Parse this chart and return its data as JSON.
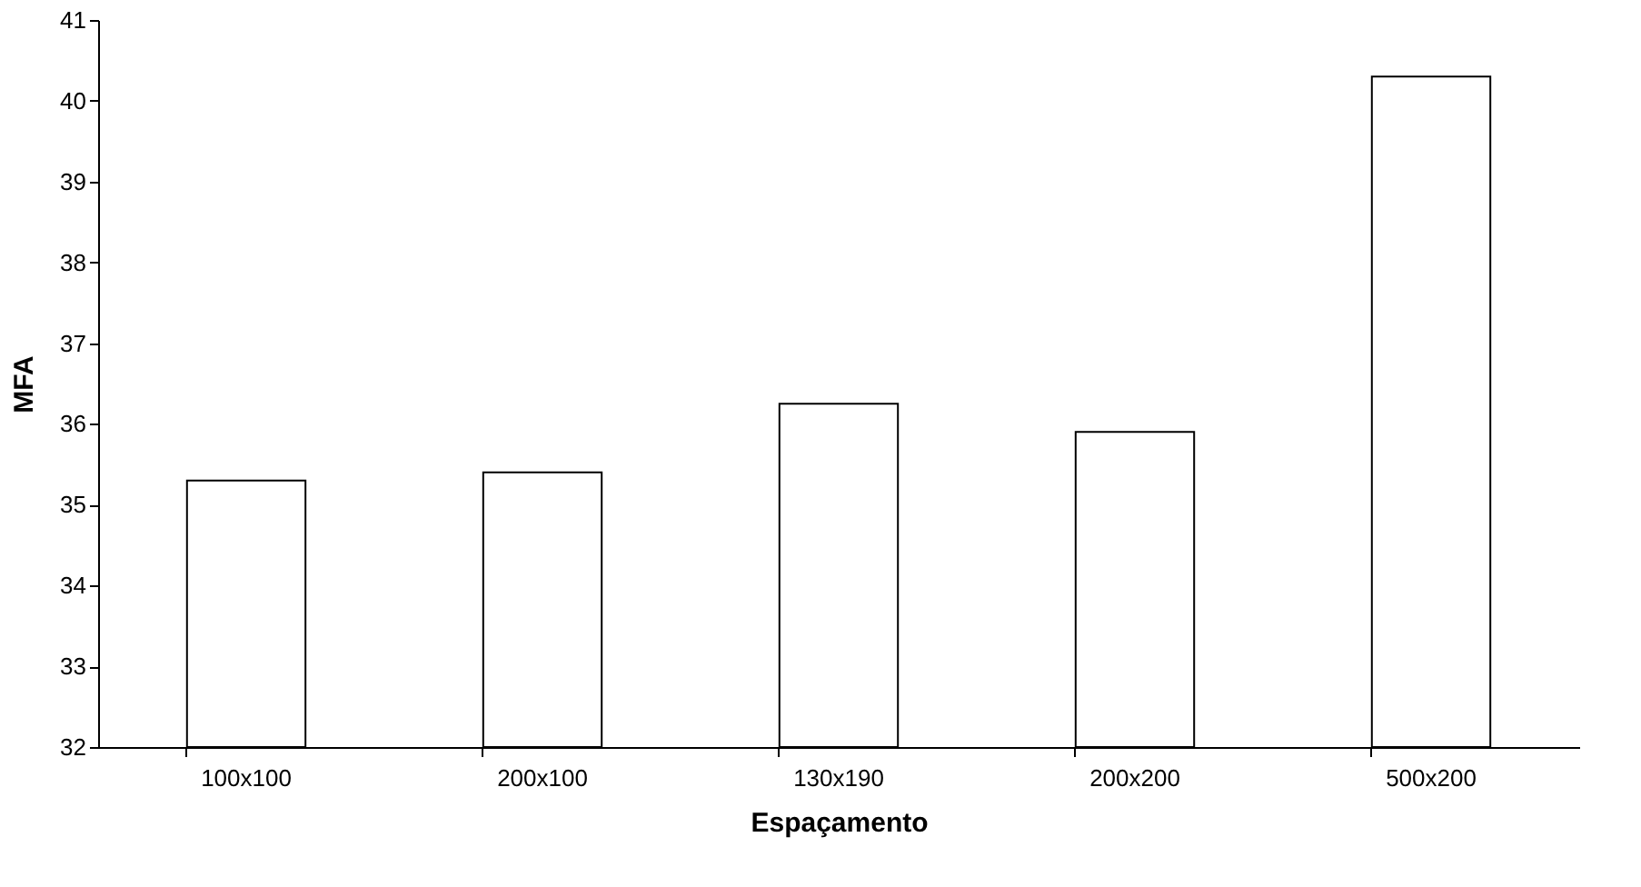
{
  "chart_data": {
    "type": "bar",
    "xlabel": "Espaçamento",
    "ylabel": "MFA",
    "categories": [
      "100x100",
      "200x100",
      "130x190",
      "200x200",
      "500x200"
    ],
    "values": [
      35.3,
      35.4,
      36.25,
      35.9,
      40.3
    ],
    "color": "#ffffff",
    "ylim": [
      32,
      41
    ],
    "yticks": [
      32,
      33,
      34,
      35,
      36,
      37,
      38,
      39,
      40,
      41
    ],
    "grid": false
  }
}
